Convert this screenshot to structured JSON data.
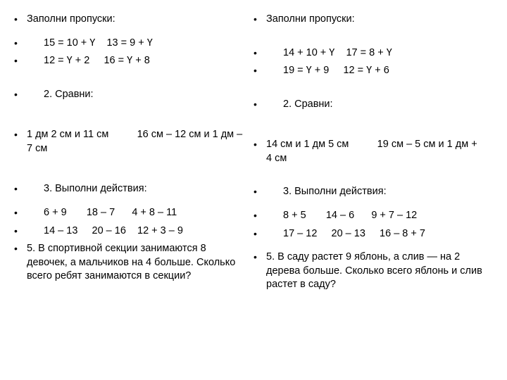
{
  "left": {
    "t1_title": "Заполни пропуски:",
    "t1_l1": "15 = 10 + Ү    13 = 9 + Ү",
    "t1_l2": "12 = Ү + 2     16 = Ү + 8",
    "t2_title": "2. Сравни:",
    "t2_l1": "1 дм 2 см и 11 см          16 см – 12 см и 1 дм – 7 см",
    "t3_title": "3. Выполни действия:",
    "t3_l1": "6 + 9       18 – 7      4 + 8 – 11",
    "t3_l2": "14 – 13     20 – 16    12 + 3 – 9",
    "t5": "5. В спортивной секции занимаются 8 девочек, а мальчиков на 4 больше. Сколько всего ребят занимаются в секции?"
  },
  "right": {
    "t1_title": "Заполни пропуски:",
    "t1_l1": "14 + 10 + Ү    17 = 8 + Ү",
    "t1_l2": "19 = Ү + 9     12 = Ү + 6",
    "t2_title": "2. Сравни:",
    "t2_l1": "14 см и 1 дм 5 см          19 см – 5 см и 1 дм + 4 см",
    "t3_title": "3. Выполни действия:",
    "t3_l1": "8 + 5       14 – 6      9 + 7 – 12",
    "t3_l2": "17 – 12     20 – 13     16 – 8 + 7",
    "t5": "5. В саду растет 9 яблонь, а слив — на 2 дерева больше. Сколько всего яблонь и слив растет в саду?"
  }
}
